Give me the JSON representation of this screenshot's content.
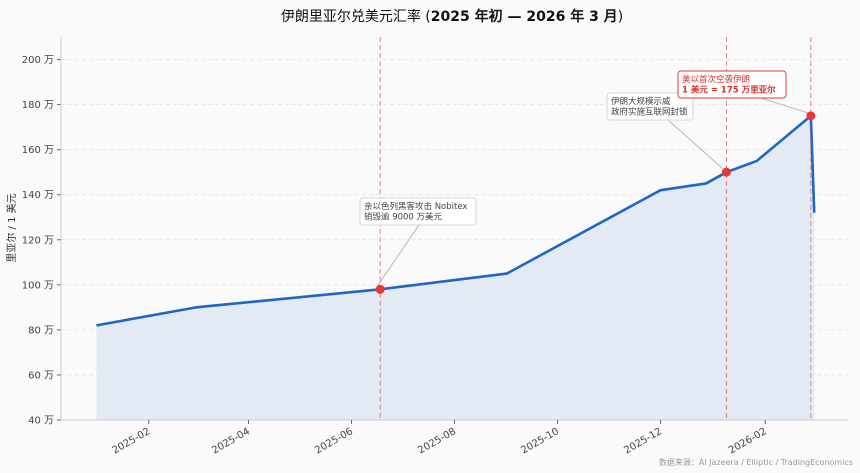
{
  "chart_data": {
    "type": "area",
    "title_prefix": "伊朗里亚尔兑美元汇率 (",
    "title_bold": "2025 年初 — 2026 年 3 月",
    "title_suffix": ")",
    "ylabel": "里亚尔 / 1 美元",
    "xlabel": "",
    "y_unit_suffix": " 万",
    "ylim": [
      40,
      210
    ],
    "yticks": [
      40,
      60,
      80,
      100,
      120,
      140,
      160,
      180,
      200
    ],
    "xlim": [
      "2024-12-11",
      "2026-03-22"
    ],
    "xticks": [
      "2025-02",
      "2025-04",
      "2025-06",
      "2025-08",
      "2025-10",
      "2025-12",
      "2026-02"
    ],
    "grid": "horizontal dashed",
    "series": [
      {
        "x": [
          "2025-01-01",
          "2025-03-01",
          "2025-06-18",
          "2025-09-01",
          "2025-12-01",
          "2025-12-28",
          "2026-01-09",
          "2026-01-27",
          "2026-02-28",
          "2026-03-02"
        ],
        "y": [
          82,
          90,
          98,
          105,
          142,
          145,
          150,
          155,
          175,
          132
        ],
        "color": "#1f67c4",
        "fill": "#e3eaf4"
      }
    ],
    "events": [
      {
        "date": "2025-06-18",
        "value": 98,
        "lines": [
          "亲以色列黑客攻击 Nobitex",
          "销毁逾 9000 万美元"
        ],
        "style": "gray"
      },
      {
        "date": "2026-01-09",
        "value": 150,
        "lines": [
          "伊朗大规模示威",
          "政府实施互联网封锁"
        ],
        "style": "gray"
      },
      {
        "date": "2026-02-28",
        "value": 175,
        "lines": [
          "美以首次空袭伊朗",
          "1 美元 = 175 万里亚尔"
        ],
        "style": "red"
      }
    ],
    "event_color": "#e53935",
    "source": "数据来源：Al Jazeera / Elliptic / TradingEconomics"
  }
}
